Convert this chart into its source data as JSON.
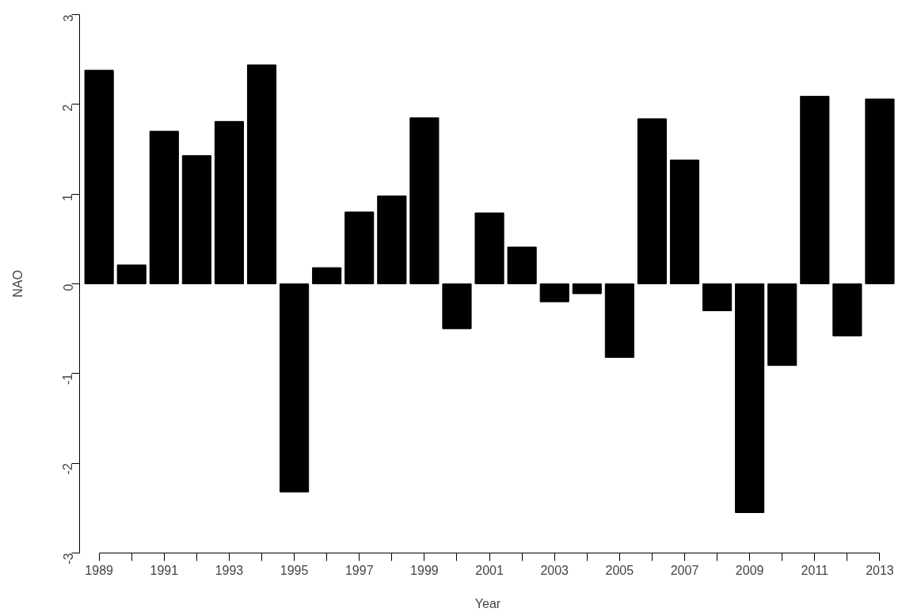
{
  "chart_data": {
    "type": "bar",
    "xlabel": "Year",
    "ylabel": "NAO",
    "color": "#000000",
    "x": [
      1989,
      1990,
      1991,
      1992,
      1993,
      1994,
      1995,
      1996,
      1997,
      1998,
      1999,
      2000,
      2001,
      2002,
      2003,
      2004,
      2005,
      2006,
      2007,
      2008,
      2009,
      2010,
      2011,
      2012,
      2013
    ],
    "values": [
      2.38,
      0.21,
      1.7,
      1.43,
      1.81,
      2.44,
      -2.32,
      0.18,
      0.8,
      0.98,
      1.85,
      -0.5,
      0.79,
      0.41,
      -0.2,
      -0.11,
      -0.82,
      1.84,
      1.38,
      -0.3,
      -2.55,
      -0.91,
      2.09,
      -0.58,
      2.06
    ],
    "xlim": [
      1988.4,
      2013.5
    ],
    "ylim": [
      -3,
      3
    ],
    "xticks": [
      1989,
      {
        "value": 1990,
        "label": null
      },
      1991,
      {
        "value": 1992,
        "label": null
      },
      1993,
      {
        "value": 1994,
        "label": null
      },
      1995,
      {
        "value": 1996,
        "label": null
      },
      1997,
      {
        "value": 1998,
        "label": null
      },
      1999,
      {
        "value": 2000,
        "label": null
      },
      2001,
      {
        "value": 2002,
        "label": null
      },
      2003,
      {
        "value": 2004,
        "label": null
      },
      2005,
      {
        "value": 2006,
        "label": null
      },
      2007,
      {
        "value": 2008,
        "label": null
      },
      2009,
      {
        "value": 2010,
        "label": null
      },
      2011,
      {
        "value": 2012,
        "label": null
      },
      2013
    ],
    "yticks": [
      -3,
      -2,
      -1,
      0,
      1,
      2,
      3
    ],
    "grid": false
  }
}
